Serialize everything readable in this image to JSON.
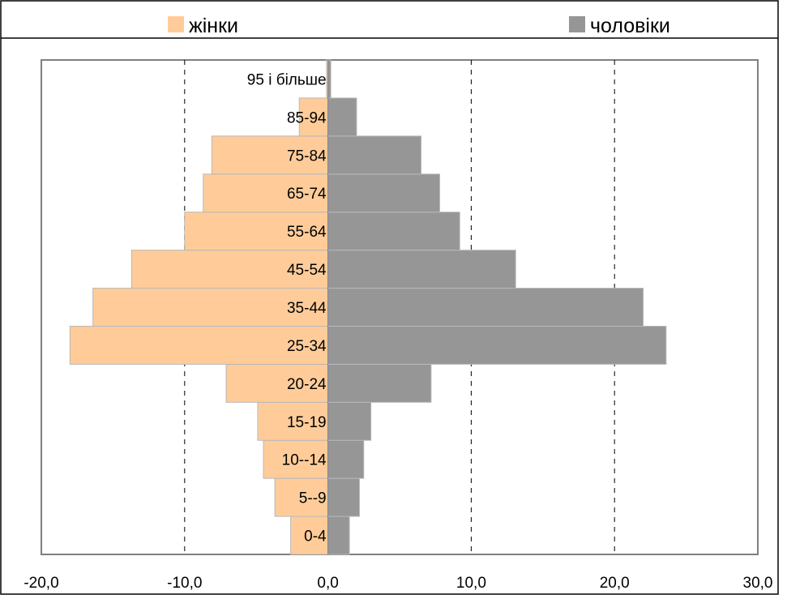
{
  "chart_data": {
    "type": "bar",
    "orientation": "horizontal",
    "layout": "population-pyramid",
    "categories": [
      "0-4",
      "5--9",
      "10--14",
      "15-19",
      "20-24",
      "25-34",
      "35-44",
      "45-54",
      "55-64",
      "65-74",
      "75-84",
      "85-94",
      "95 і більше"
    ],
    "series": [
      {
        "name": "жінки",
        "color": "#FFCC99",
        "values": [
          -2.6,
          -3.7,
          -4.5,
          -4.9,
          -7.1,
          -18.0,
          -16.4,
          -13.7,
          -10.0,
          -8.7,
          -8.1,
          -2.0,
          -0.1
        ]
      },
      {
        "name": "чоловіки",
        "color": "#969696",
        "values": [
          1.5,
          2.2,
          2.5,
          3.0,
          7.2,
          23.6,
          22.0,
          13.1,
          9.2,
          7.8,
          6.5,
          2.0,
          0.2
        ]
      }
    ],
    "xlim": [
      -20,
      30
    ],
    "x_ticks": [
      "-20,0",
      "-10,0",
      "0,0",
      "10,0",
      "20,0",
      "30,0"
    ],
    "x_tick_values": [
      -20,
      -10,
      0,
      10,
      20,
      30
    ],
    "grid": "dashed vertical",
    "legend_position": "top",
    "title": "",
    "xlabel": "",
    "ylabel": ""
  }
}
